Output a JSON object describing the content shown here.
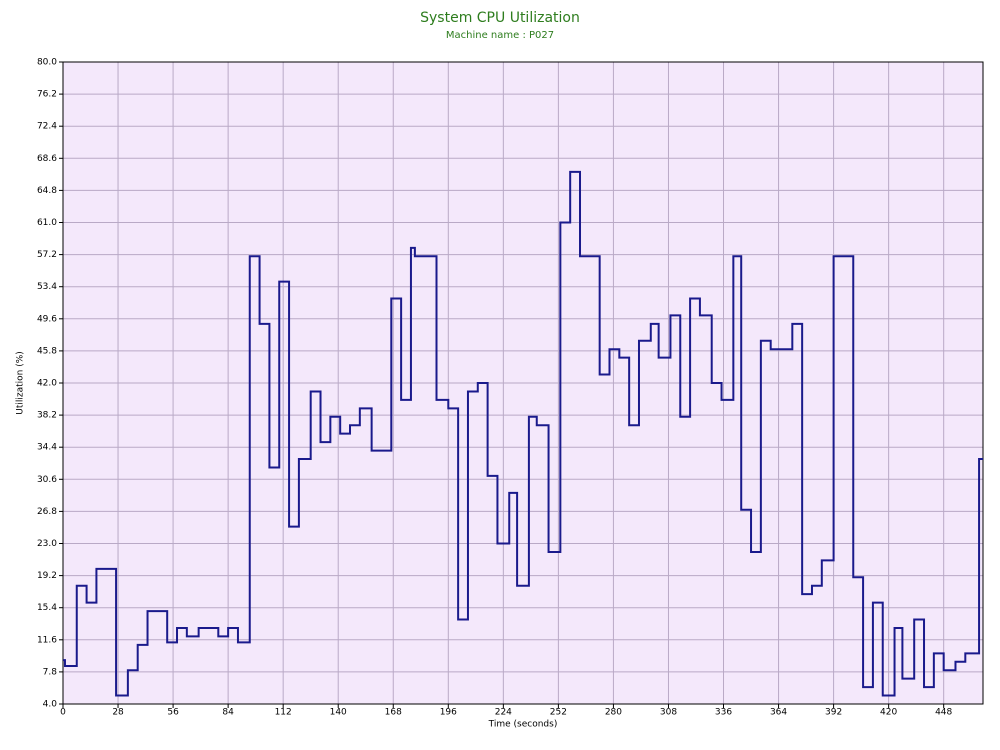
{
  "chart_data": {
    "type": "line",
    "step": true,
    "title": "System CPU Utilization",
    "subtitle": "Machine name : P027",
    "xlabel": "Time (seconds)",
    "ylabel": "Utilization (%)",
    "x": [
      0,
      1,
      7,
      12,
      17,
      27,
      33,
      38,
      43,
      53,
      58,
      63,
      69,
      79,
      84,
      89,
      95,
      100,
      105,
      110,
      115,
      120,
      126,
      131,
      136,
      141,
      146,
      151,
      157,
      167,
      172,
      177,
      179,
      190,
      196,
      201,
      206,
      211,
      216,
      221,
      227,
      231,
      237,
      241,
      247,
      253,
      258,
      263,
      273,
      278,
      283,
      288,
      293,
      299,
      303,
      309,
      314,
      319,
      324,
      330,
      335,
      341,
      345,
      350,
      355,
      360,
      371,
      376,
      381,
      386,
      392,
      402,
      407,
      412,
      417,
      423,
      427,
      433,
      438,
      443,
      448,
      454,
      459,
      466,
      468
    ],
    "series": [
      {
        "name": "CPU",
        "color": "#1a1a8c",
        "values": [
          9.2,
          8.5,
          18,
          16,
          20,
          5,
          8,
          11,
          15,
          11.3,
          13,
          12,
          13,
          12,
          13,
          11.3,
          57,
          49,
          32,
          54,
          25,
          33,
          41,
          35,
          38,
          36,
          37,
          39,
          34,
          52,
          40,
          58,
          57,
          40,
          39,
          14,
          41,
          42,
          31,
          23,
          29,
          18,
          38,
          37,
          22,
          61,
          67,
          57,
          43,
          46,
          45,
          37,
          47,
          49,
          45,
          50,
          38,
          52,
          50,
          42,
          40,
          57,
          27,
          22,
          47,
          46,
          49,
          17,
          18,
          21,
          57,
          19,
          6,
          16,
          5,
          13,
          7,
          14,
          6,
          10,
          8,
          9,
          10,
          33,
          33
        ]
      }
    ],
    "xlim": [
      0,
      468
    ],
    "xticks": [
      0,
      28,
      56,
      84,
      112,
      140,
      168,
      196,
      224,
      252,
      280,
      308,
      336,
      364,
      392,
      420,
      448
    ],
    "ylim": [
      4,
      80
    ],
    "yticks": [
      {
        "value": 4,
        "label": "4.0"
      },
      7.8,
      11.6,
      15.4,
      19.2,
      {
        "value": 23,
        "label": "23.0"
      },
      26.8,
      30.6,
      34.4,
      38.2,
      {
        "value": 42,
        "label": "42.0"
      },
      45.8,
      49.6,
      53.4,
      57.2,
      {
        "value": 61,
        "label": "61.0"
      },
      64.8,
      68.6,
      72.4,
      76.2,
      {
        "value": 80,
        "label": "80.0"
      }
    ],
    "grid": true,
    "background": "#f4e8fb"
  }
}
